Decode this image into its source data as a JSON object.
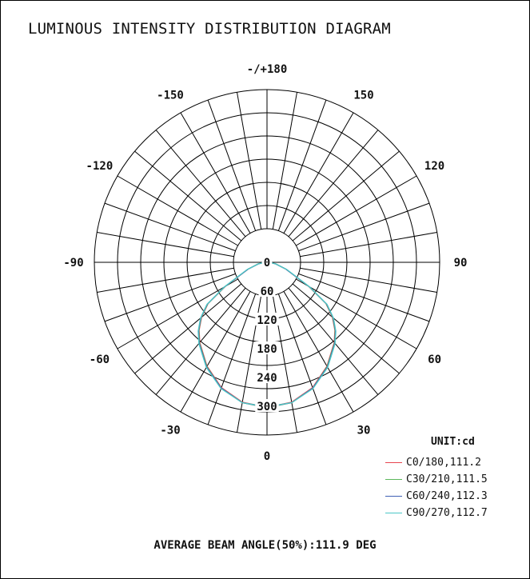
{
  "chart_data": {
    "type": "polar",
    "title": "LUMINOUS INTENSITY DISTRIBUTION DIAGRAM",
    "unit_label": "UNIT:cd",
    "radial_ticks": [
      0,
      60,
      120,
      180,
      240,
      300
    ],
    "radial_max": 360,
    "angle_labels": [
      {
        "deg": 180,
        "text": "-/+180"
      },
      {
        "deg": -150,
        "text": "-150"
      },
      {
        "deg": 150,
        "text": "150"
      },
      {
        "deg": -120,
        "text": "-120"
      },
      {
        "deg": 120,
        "text": "120"
      },
      {
        "deg": -90,
        "text": "-90"
      },
      {
        "deg": 90,
        "text": "90"
      },
      {
        "deg": -60,
        "text": "-60"
      },
      {
        "deg": 60,
        "text": "60"
      },
      {
        "deg": -30,
        "text": "-30"
      },
      {
        "deg": 30,
        "text": "30"
      },
      {
        "deg": 0,
        "text": "0"
      }
    ],
    "angles": [
      -90,
      -80,
      -70,
      -60,
      -55,
      -50,
      -45,
      -40,
      -30,
      -20,
      -10,
      0,
      10,
      20,
      30,
      40,
      45,
      50,
      55,
      60,
      70,
      80,
      90
    ],
    "series": [
      {
        "name": "C0/180,111.2",
        "color": "#e8454f",
        "values": [
          4,
          18,
          42,
          100,
          150,
          178,
          200,
          218,
          250,
          278,
          296,
          302,
          296,
          278,
          250,
          218,
          200,
          178,
          150,
          100,
          42,
          18,
          4
        ]
      },
      {
        "name": "C30/210,111.5",
        "color": "#5cb85c",
        "values": [
          5,
          19,
          43,
          101,
          151,
          179,
          201,
          219,
          251,
          279,
          297,
          303,
          297,
          279,
          251,
          219,
          201,
          179,
          151,
          101,
          43,
          19,
          5
        ]
      },
      {
        "name": "C60/240,112.3",
        "color": "#3f60b5",
        "values": [
          4,
          18,
          42,
          102,
          152,
          180,
          202,
          220,
          252,
          279,
          297,
          302,
          297,
          279,
          252,
          220,
          202,
          180,
          152,
          102,
          42,
          18,
          4
        ]
      },
      {
        "name": "C90/270,112.7",
        "color": "#4cc7c7",
        "values": [
          4,
          18,
          44,
          103,
          153,
          181,
          203,
          221,
          253,
          280,
          297,
          301,
          297,
          280,
          253,
          221,
          203,
          181,
          153,
          103,
          44,
          18,
          4
        ]
      }
    ],
    "footer": "AVERAGE BEAM ANGLE(50%):111.9 DEG"
  }
}
